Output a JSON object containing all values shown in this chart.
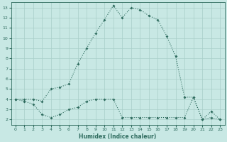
{
  "xlabel": "Humidex (Indice chaleur)",
  "x_upper": [
    0,
    1,
    2,
    3,
    4,
    5,
    6,
    7,
    8,
    9,
    10,
    11,
    12,
    13,
    14,
    15,
    16,
    17,
    18,
    19,
    20,
    21,
    22,
    23
  ],
  "y_upper": [
    4.0,
    4.0,
    4.0,
    3.8,
    5.0,
    5.2,
    5.5,
    7.5,
    9.0,
    10.5,
    11.8,
    13.2,
    12.0,
    13.0,
    12.8,
    12.2,
    11.8,
    10.2,
    8.2,
    4.2,
    4.2,
    2.0,
    2.8,
    2.0
  ],
  "x_lower": [
    0,
    1,
    2,
    3,
    4,
    5,
    6,
    7,
    8,
    9,
    10,
    11,
    12,
    13,
    14,
    15,
    16,
    17,
    18,
    19,
    20,
    21,
    22,
    23
  ],
  "y_lower": [
    4.0,
    3.8,
    3.5,
    2.5,
    2.2,
    2.5,
    3.0,
    3.2,
    3.8,
    4.0,
    4.0,
    4.0,
    2.2,
    2.2,
    2.2,
    2.2,
    2.2,
    2.2,
    2.2,
    2.2,
    4.2,
    2.0,
    2.2,
    2.0
  ],
  "line_color": "#2E6B5E",
  "bg_color": "#C8E8E4",
  "grid_color": "#A8CEC8",
  "ylim": [
    1.5,
    13.5
  ],
  "xlim": [
    -0.5,
    23.5
  ],
  "yticks": [
    2,
    3,
    4,
    5,
    6,
    7,
    8,
    9,
    10,
    11,
    12,
    13
  ],
  "xticks": [
    0,
    1,
    2,
    3,
    4,
    5,
    6,
    7,
    8,
    9,
    10,
    11,
    12,
    13,
    14,
    15,
    16,
    17,
    18,
    19,
    20,
    21,
    22,
    23
  ]
}
